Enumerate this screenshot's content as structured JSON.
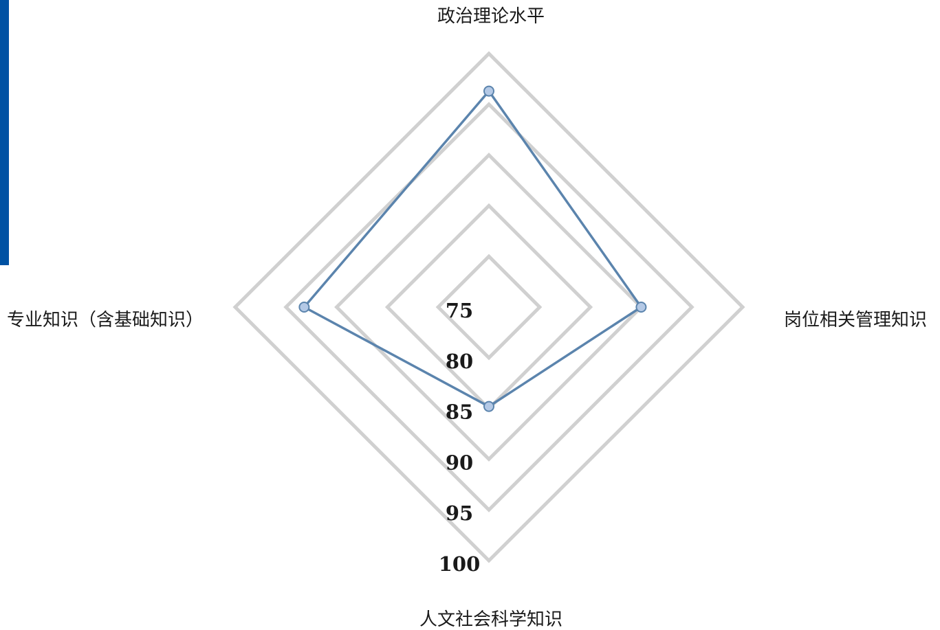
{
  "colors": {
    "accent_bar": "#0052a3",
    "series_line": "#5b84ad",
    "point_fill": "#b4c9e6",
    "point_stroke": "#5b84ad",
    "grid": "#d0d0d0"
  },
  "chart_data": {
    "type": "radar",
    "title": "",
    "axes": [
      "政治理论水平",
      "岗位相关管理知识",
      "人文社会科学知识",
      "专业知识（含基础知识）"
    ],
    "range": [
      75,
      100
    ],
    "ticks": [
      75,
      80,
      85,
      90,
      95,
      100
    ],
    "tick_labels": [
      "75",
      "80",
      "85",
      "90",
      "95",
      "100"
    ],
    "grid": true,
    "series": [
      {
        "name": "",
        "values": [
          96.3,
          90,
          84.8,
          93.2
        ]
      }
    ]
  }
}
